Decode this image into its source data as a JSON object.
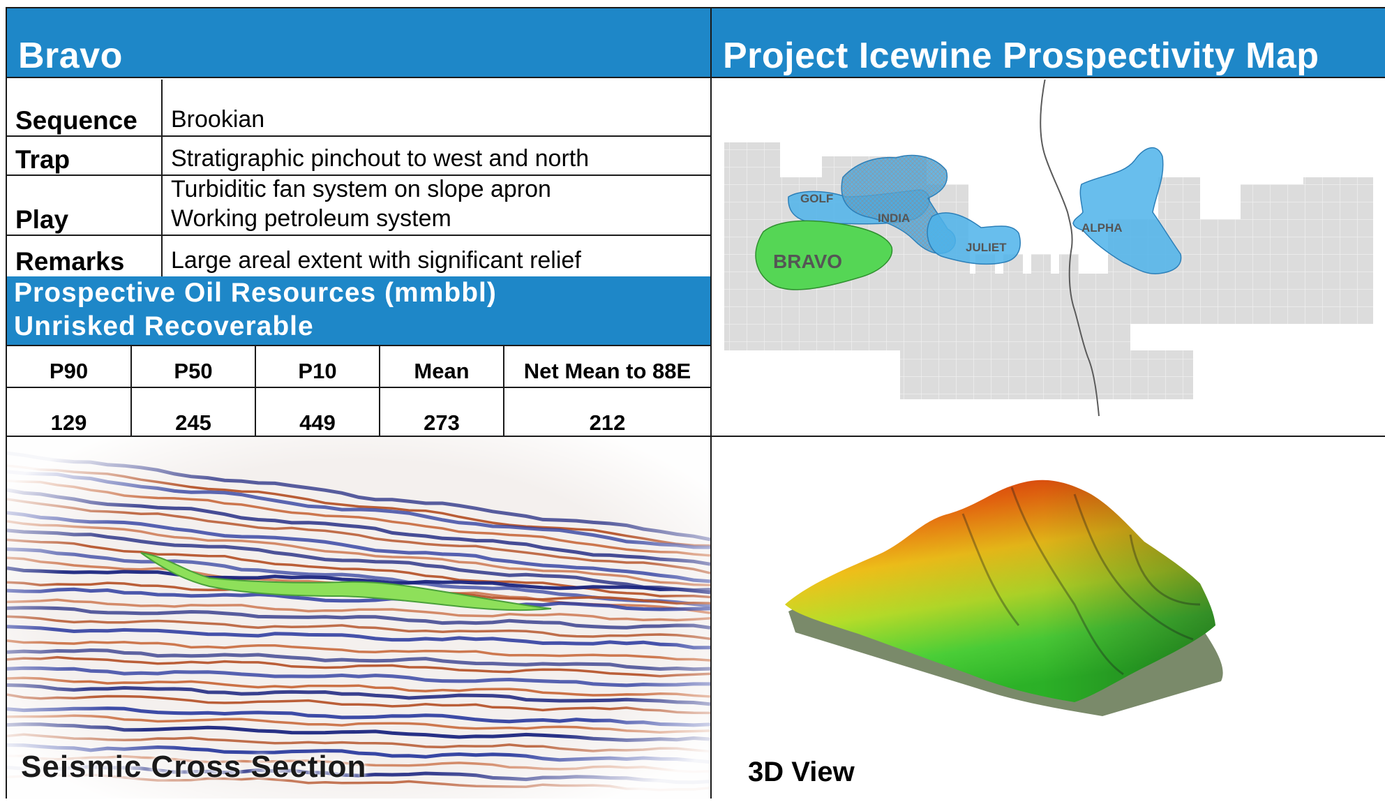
{
  "prospect": {
    "title": "Bravo"
  },
  "map_panel": {
    "title": "Project Icewine Prospectivity Map",
    "labels": {
      "golf": "GOLF",
      "india": "INDIA",
      "juliet": "JULIET",
      "alpha": "ALPHA",
      "bravo": "BRAVO"
    },
    "colors": {
      "lease_grid": "#d9d9d9",
      "prospect_blue": "#4db3ea",
      "bravo_green": "#55d655"
    }
  },
  "info": {
    "rows": [
      {
        "key": "Sequence",
        "value": "Brookian"
      },
      {
        "key": "Trap",
        "value": "Stratigraphic pinchout to west and north"
      },
      {
        "key": "Play",
        "value_line1": "Turbiditic fan system on slope apron",
        "value_line2": "Working petroleum system"
      },
      {
        "key": "Remarks",
        "value": "Large areal extent with significant relief"
      }
    ]
  },
  "resources": {
    "title_line1": "Prospective  Oil  Resources  (mmbbl)",
    "title_line2": "Unrisked  Recoverable",
    "headers": [
      "P90",
      "P50",
      "P10",
      "Mean",
      "Net Mean to 88E"
    ],
    "values": [
      "129",
      "245",
      "449",
      "273",
      "212"
    ]
  },
  "seismic": {
    "caption": "Seismic  Cross  Section"
  },
  "view3d": {
    "caption": "3D View"
  },
  "colors": {
    "banner_blue": "#1e87c8",
    "border": "#1a1a1a"
  }
}
